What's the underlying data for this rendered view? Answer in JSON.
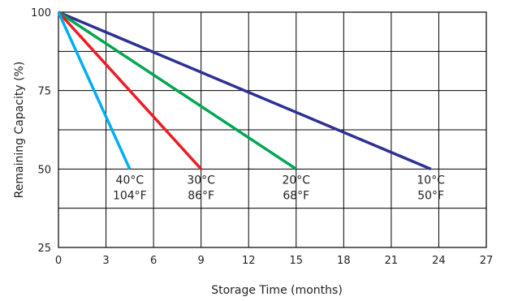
{
  "chart_data": {
    "type": "line",
    "xlabel": "Storage Time (months)",
    "ylabel": "Remaining Capacity (%)",
    "xlim": [
      0,
      27
    ],
    "ylim": [
      25,
      100
    ],
    "x_ticks": [
      0,
      3,
      6,
      9,
      12,
      15,
      18,
      21,
      24,
      27
    ],
    "y_ticks": [
      25,
      50,
      75,
      100
    ],
    "grid": true,
    "series": [
      {
        "name": "10°C 50°F",
        "label_lines": [
          "10°C",
          "50°F"
        ],
        "color": "#2e3192",
        "x": [
          0,
          23.5
        ],
        "y": [
          100,
          50
        ]
      },
      {
        "name": "20°C 68°F",
        "label_lines": [
          "20°C",
          "68°F"
        ],
        "color": "#00a651",
        "x": [
          0,
          15
        ],
        "y": [
          100,
          50
        ]
      },
      {
        "name": "30°C 86°F",
        "label_lines": [
          "30°C",
          "86°F"
        ],
        "color": "#ed1c24",
        "x": [
          0,
          9
        ],
        "y": [
          100,
          50
        ]
      },
      {
        "name": "40°C 104°F",
        "label_lines": [
          "40°C",
          "104°F"
        ],
        "color": "#00aeef",
        "x": [
          0,
          4.5
        ],
        "y": [
          100,
          50
        ]
      }
    ]
  }
}
